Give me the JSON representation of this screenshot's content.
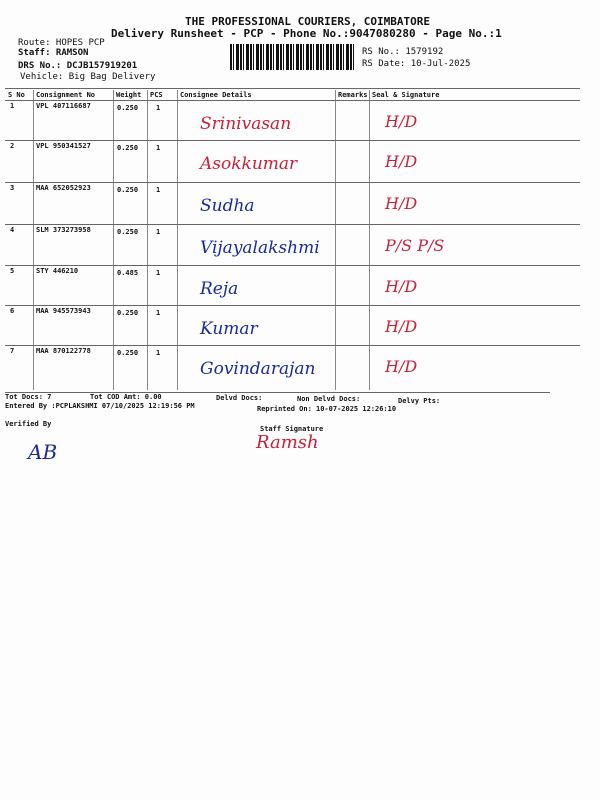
{
  "header": {
    "company": "THE PROFESSIONAL COURIERS, COIMBATORE",
    "subtitle": "Delivery Runsheet - PCP - Phone No.:9047080280 - Page No.:1",
    "route": "Route: HOPES PCP",
    "staff": "Staff: RAMSON",
    "drs": "DRS No.: DCJB157919201",
    "vehicle": "Vehicle: Big Bag Delivery",
    "rs_no": "RS No.: 1579192",
    "rs_date": "RS Date: 10-Jul-2025"
  },
  "table": {
    "columns": [
      "S No",
      "Consignment No",
      "Weight",
      "PCS",
      "Consignee Details",
      "Remarks",
      "Seal & Signature"
    ],
    "rows": [
      {
        "sno": "1",
        "consignment": "VPL 407116687",
        "weight": "0.250",
        "pcs": "1",
        "consignee": "Srinivasan",
        "seal": "H/D",
        "ink": "red"
      },
      {
        "sno": "2",
        "consignment": "VPL 950341527",
        "weight": "0.250",
        "pcs": "1",
        "consignee": "Asokkumar",
        "seal": "H/D",
        "ink": "red"
      },
      {
        "sno": "3",
        "consignment": "MAA 652052923",
        "weight": "0.250",
        "pcs": "1",
        "consignee": "Sudha",
        "seal": "H/D",
        "ink": "blue"
      },
      {
        "sno": "4",
        "consignment": "SLM 373273958",
        "weight": "0.250",
        "pcs": "1",
        "consignee": "Vijayalakshmi",
        "seal": "P/S  P/S",
        "ink": "blue"
      },
      {
        "sno": "5",
        "consignment": "STY 446210",
        "weight": "0.485",
        "pcs": "1",
        "consignee": "Reja",
        "seal": "H/D",
        "ink": "blue"
      },
      {
        "sno": "6",
        "consignment": "MAA 945573943",
        "weight": "0.250",
        "pcs": "1",
        "consignee": "Kumar",
        "seal": "H/D",
        "ink": "blue"
      },
      {
        "sno": "7",
        "consignment": "MAA 870122778",
        "weight": "0.250",
        "pcs": "1",
        "consignee": "Govindarajan",
        "seal": "H/D",
        "ink": "blue"
      }
    ]
  },
  "footer": {
    "tot_docs": "Tot Docs:   7",
    "tot_cod": "Tot COD Amt:    0.00",
    "delvd": "Delvd Docs:",
    "non_delvd": "Non Delvd Docs:",
    "delvy_pts": "Delvy Pts:",
    "entered_by": "Entered By :PCPLAKSHMI 07/10/2025 12:19:56 PM",
    "reprinted": "Reprinted On: 10-07-2025 12:26:10",
    "verified_by": "Verified By",
    "staff_signature": "Staff Signature",
    "staff_sign_hand": "Ramsh",
    "verified_sign_hand": "AB"
  },
  "colors": {
    "blue_ink": "#1a2a9a",
    "red_ink": "#c8213a"
  }
}
